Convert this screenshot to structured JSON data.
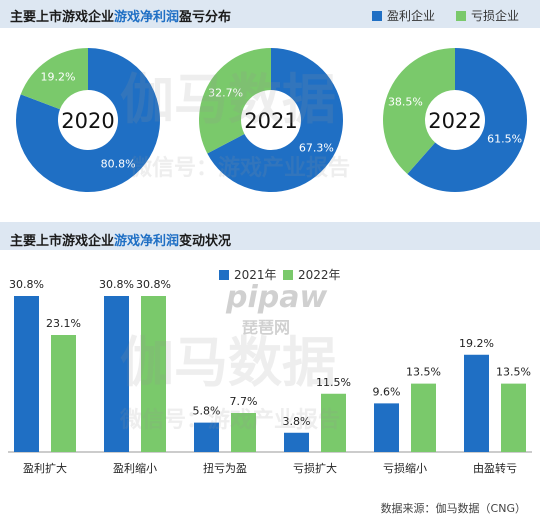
{
  "top": {
    "title_prefix": "主要上市游戏企业",
    "title_highlight": "游戏净利润",
    "title_suffix": "盈亏分布",
    "legend": [
      {
        "label": "盈利企业",
        "color": "#1f6fc4"
      },
      {
        "label": "亏损企业",
        "color": "#7ac96b"
      }
    ]
  },
  "bottom": {
    "title_prefix": "主要上市游戏企业",
    "title_highlight": "游戏净利润",
    "title_suffix": "变动状况",
    "legend": [
      {
        "label": "2021年",
        "color": "#1f6fc4"
      },
      {
        "label": "2022年",
        "color": "#7ac96b"
      }
    ]
  },
  "watermarks": {
    "brand": "伽马数据",
    "line": "微信号：游戏产业报告",
    "site": "pipaw",
    "site_cn": "琵琶网"
  },
  "source": "数据来源：伽马数据（CNG）",
  "colors": {
    "blue": "#1f6fc4",
    "green": "#7ac96b",
    "band": "#dde7f2"
  },
  "chart_data": [
    {
      "type": "pie",
      "title": "2020",
      "labels": [
        "盈利企业",
        "亏损企业"
      ],
      "values": [
        80.8,
        19.2
      ],
      "display": [
        "80.8%",
        "19.2%"
      ]
    },
    {
      "type": "pie",
      "title": "2021",
      "labels": [
        "盈利企业",
        "亏损企业"
      ],
      "values": [
        67.3,
        32.7
      ],
      "display": [
        "67.3%",
        "32.7%"
      ]
    },
    {
      "type": "pie",
      "title": "2022",
      "labels": [
        "盈利企业",
        "亏损企业"
      ],
      "values": [
        61.5,
        38.5
      ],
      "display": [
        "61.5%",
        "38.5%"
      ]
    },
    {
      "type": "bar",
      "categories": [
        "盈利扩大",
        "盈利缩小",
        "扭亏为盈",
        "亏损扩大",
        "亏损缩小",
        "由盈转亏"
      ],
      "series": [
        {
          "name": "2021年",
          "values": [
            30.8,
            30.8,
            5.8,
            3.8,
            9.6,
            19.2
          ],
          "display": [
            "30.8%",
            "30.8%",
            "5.8%",
            "3.8%",
            "9.6%",
            "19.2%"
          ]
        },
        {
          "name": "2022年",
          "values": [
            23.1,
            30.8,
            7.7,
            11.5,
            13.5,
            13.5
          ],
          "display": [
            "23.1%",
            "30.8%",
            "7.7%",
            "11.5%",
            "13.5%",
            "13.5%"
          ]
        }
      ],
      "ylim": [
        0,
        30.8
      ]
    }
  ]
}
